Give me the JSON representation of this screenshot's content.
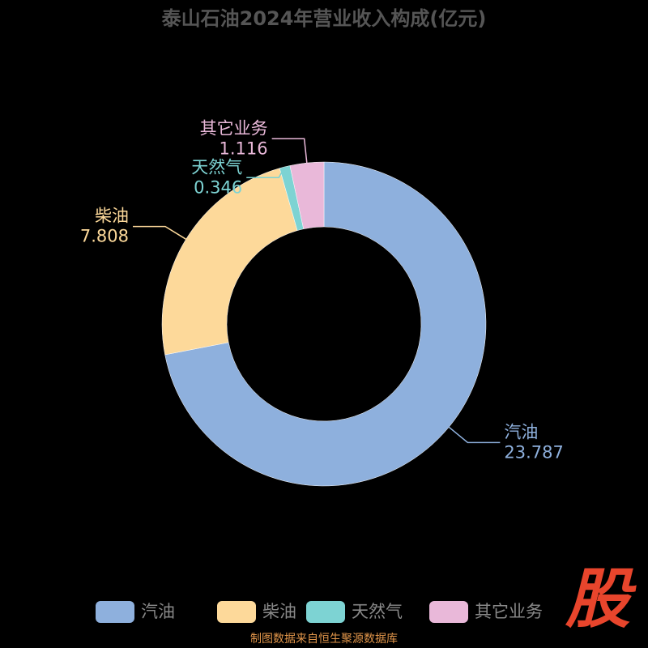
{
  "chart_data": {
    "type": "pie",
    "title": "泰山石油2024年营业收入构成(亿元)",
    "categories": [
      "汽油",
      "柴油",
      "天然气",
      "其它业务"
    ],
    "values": [
      23.787,
      7.808,
      0.346,
      1.116
    ],
    "colors": [
      "#8eb0dd",
      "#fdd99a",
      "#7dd3d3",
      "#e9b8d9"
    ],
    "donut": true,
    "source": "制图数据来自恒生聚源数据库",
    "logo": "股"
  }
}
